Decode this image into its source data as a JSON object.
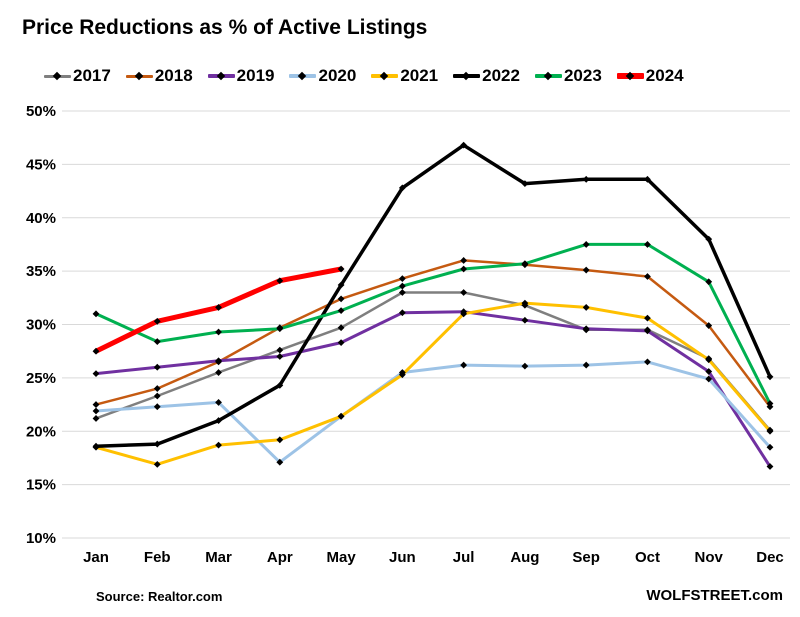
{
  "title": "Price Reductions as % of Active Listings",
  "footer": {
    "source": "Source: Realtor.com",
    "watermark": "WOLFSTREET.com"
  },
  "chart_data": {
    "type": "line",
    "title": "Price Reductions as % of Active Listings",
    "x": [
      "Jan",
      "Feb",
      "Mar",
      "Apr",
      "May",
      "Jun",
      "Jul",
      "Aug",
      "Sep",
      "Oct",
      "Nov",
      "Dec"
    ],
    "ylim": [
      10,
      50
    ],
    "ytick_step": 5,
    "ytick_suffix": "%",
    "grid": "horizontal-only",
    "gridline_color": "#d9d9d9",
    "legend_position": "top",
    "marker": {
      "shape": "diamond",
      "color": "#000000"
    },
    "series": [
      {
        "name": "2017",
        "color": "#7f7f7f",
        "width": 2.5,
        "values": [
          21.2,
          23.3,
          25.5,
          27.6,
          29.7,
          33.0,
          33.0,
          31.8,
          29.5,
          29.5,
          26.8,
          20.1
        ]
      },
      {
        "name": "2018",
        "color": "#c55a11",
        "width": 2.5,
        "values": [
          22.5,
          24.0,
          26.5,
          29.7,
          32.4,
          34.3,
          36.0,
          35.6,
          35.1,
          34.5,
          29.9,
          22.3
        ]
      },
      {
        "name": "2019",
        "color": "#7030a0",
        "width": 3,
        "values": [
          25.4,
          26.0,
          26.6,
          27.0,
          28.3,
          31.1,
          31.2,
          30.4,
          29.6,
          29.4,
          25.6,
          16.7
        ]
      },
      {
        "name": "2020",
        "color": "#9dc3e6",
        "width": 3,
        "values": [
          21.9,
          22.3,
          22.7,
          17.1,
          21.4,
          25.5,
          26.2,
          26.1,
          26.2,
          26.5,
          24.9,
          18.5
        ]
      },
      {
        "name": "2021",
        "color": "#ffc000",
        "width": 3,
        "values": [
          18.5,
          16.9,
          18.7,
          19.2,
          21.4,
          25.3,
          31.0,
          32.0,
          31.6,
          30.6,
          26.7,
          20.0
        ]
      },
      {
        "name": "2022",
        "color": "#000000",
        "width": 3.5,
        "values": [
          18.6,
          18.8,
          21.0,
          24.3,
          33.7,
          42.8,
          46.8,
          43.2,
          43.6,
          43.6,
          38.0,
          25.1
        ]
      },
      {
        "name": "2023",
        "color": "#00b050",
        "width": 3,
        "values": [
          31.0,
          28.4,
          29.3,
          29.6,
          31.3,
          33.6,
          35.2,
          35.7,
          37.5,
          37.5,
          34.0,
          22.6
        ]
      },
      {
        "name": "2024",
        "color": "#ff0000",
        "width": 5,
        "values": [
          27.5,
          30.3,
          31.6,
          34.1,
          35.2
        ]
      }
    ]
  }
}
